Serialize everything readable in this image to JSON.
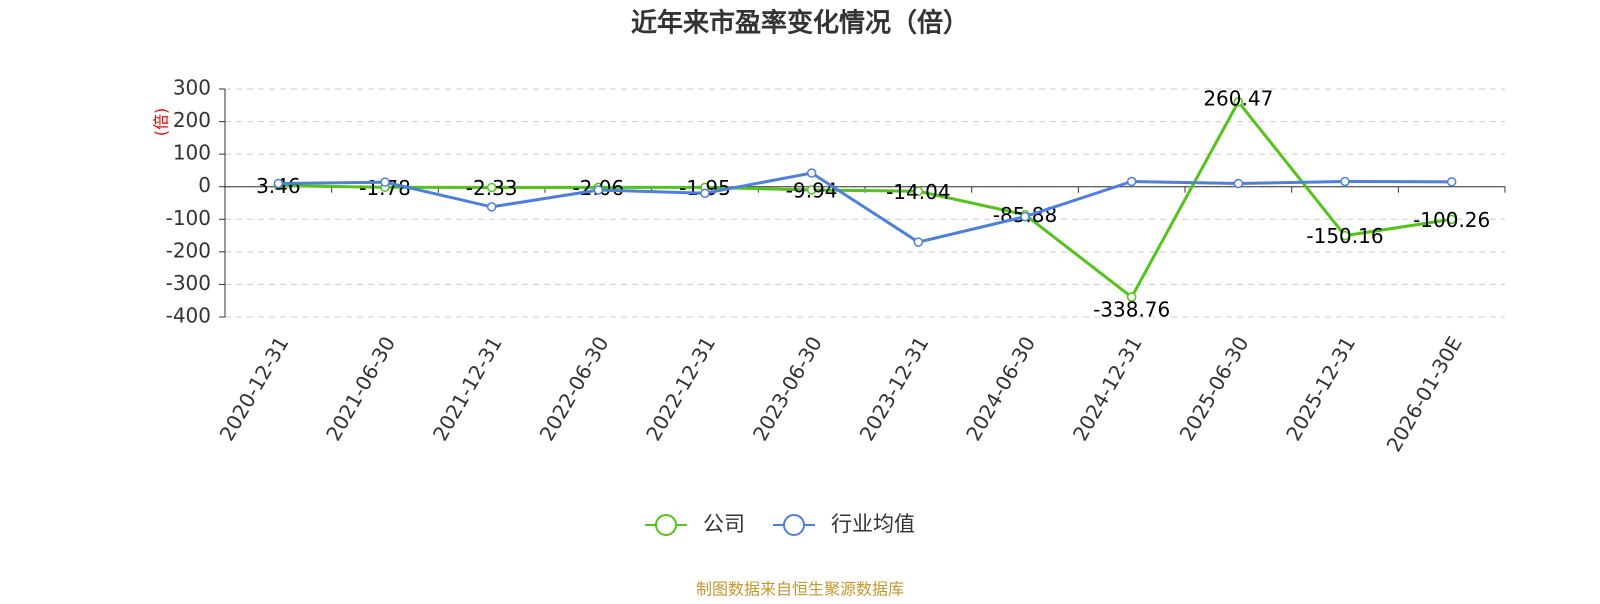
{
  "chart_data": {
    "type": "line",
    "title": "近年来市盈率变化情况（倍）",
    "y_label": "(倍)",
    "categories": [
      "2020-12-31",
      "2021-06-30",
      "2021-12-31",
      "2022-06-30",
      "2022-12-31",
      "2023-06-30",
      "2023-12-31",
      "2024-06-30",
      "2024-12-31",
      "2025-06-30",
      "2025-12-31",
      "2026-01-30E"
    ],
    "series": [
      {
        "name": "公司",
        "color": "#52c41a",
        "values": [
          3.46,
          -1.78,
          -2.33,
          -2.06,
          -1.95,
          -9.94,
          -14.04,
          -85.88,
          -338.76,
          260.47,
          -150.16,
          -100.26
        ],
        "show_labels": true
      },
      {
        "name": "行业均值",
        "color": "#4e7fdc",
        "values": [
          10,
          14,
          -62,
          -10,
          -20,
          42,
          -170,
          -92,
          16,
          10,
          16,
          15
        ],
        "show_labels": false
      }
    ],
    "ylim": [
      -400,
      300
    ],
    "yticks": [
      -400,
      -300,
      -200,
      -100,
      0,
      100,
      200,
      300
    ],
    "grid": true,
    "source": "制图数据来自恒生聚源数据库"
  }
}
